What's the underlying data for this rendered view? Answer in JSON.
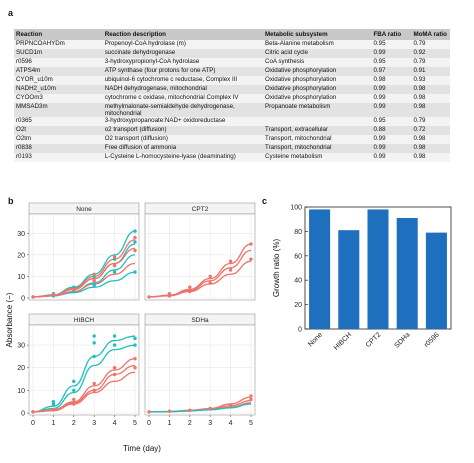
{
  "panels": {
    "a": "a",
    "b": "b",
    "c": "c"
  },
  "table": {
    "headers": [
      "Reaction",
      "Reaction description",
      "Metabolic subsystem",
      "FBA ratio",
      "MoMA ratio"
    ],
    "rows": [
      [
        "PRPNCOAHYDm",
        "Propenoyl-CoA hydrolase (m)",
        "Beta-Alanine metabolism",
        "0.95",
        "0.79"
      ],
      [
        "SUCD1m",
        "succinate dehydrogenase",
        "Citric acid cycle",
        "0.99",
        "0.92"
      ],
      [
        "r0596",
        "3-hydroxypropionyl-CoA hydrolase",
        "CoA synthesis",
        "0.95",
        "0.79"
      ],
      [
        "ATPS4m",
        "ATP synthase (four protons for one ATP)",
        "Oxidative phosphorylation",
        "0.97",
        "0.91"
      ],
      [
        "CYOR_u10m",
        "ubiquinol-6 cytochrome c reductase, Complex III",
        "Oxidative phosphorylation",
        "0.98",
        "0.93"
      ],
      [
        "NADH2_u10m",
        "NADH dehydrogenase, mitochondrial",
        "Oxidative phosphorylation",
        "0.99",
        "0.98"
      ],
      [
        "CYOOm3",
        "cytochrome c oxidase, mitochondrial Complex IV",
        "Oxidative phosphorylation",
        "0.99",
        "0.98"
      ],
      [
        "MMSAD3m",
        "methylmalonate-semialdehyde dehydrogenase, mitochondrial",
        "Propanoate metabolism",
        "0.99",
        "0.98"
      ],
      [
        "r0365",
        "3-hydroxypropanoate:NAD+ oxidoreductase",
        "",
        "0.95",
        "0.79"
      ],
      [
        "O2t",
        "o2 transport (diffusion)",
        "Transport, extracellular",
        "0.88",
        "0.72"
      ],
      [
        "O2tm",
        "O2 transport (diffusion)",
        "Transport, mitochondrial",
        "0.99",
        "0.98"
      ],
      [
        "r0838",
        "Free diffusion of ammonia",
        "Transport, mitochondrial",
        "0.99",
        "0.98"
      ],
      [
        "r0193",
        "L-Cysteine L-homocysteine-lyase (deaminating)",
        "Cysteine metabolism",
        "0.99",
        "0.98"
      ]
    ]
  },
  "chart_data": [
    {
      "type": "scatter",
      "panel": "b",
      "xlabel": "Time (day)",
      "ylabel": "Absorbance (−)",
      "xlim": [
        0,
        5
      ],
      "ylim": [
        0,
        38
      ],
      "xticks": [
        0,
        1,
        2,
        3,
        4,
        5
      ],
      "yticks": [
        0,
        10,
        20,
        30
      ],
      "colors": {
        "a": "#1fbfbf",
        "b": "#f0736a"
      },
      "facets": [
        {
          "title": "None",
          "curves": [
            {
              "series": "a",
              "x": [
                0,
                1,
                2,
                3,
                4,
                5
              ],
              "y": [
                0.5,
                1.5,
                5,
                11,
                20,
                31
              ]
            },
            {
              "series": "a",
              "x": [
                0,
                1,
                2,
                3,
                4,
                5
              ],
              "y": [
                0.5,
                1.2,
                4,
                9,
                16,
                25
              ]
            },
            {
              "series": "a",
              "x": [
                0,
                1,
                2,
                3,
                4,
                5
              ],
              "y": [
                0.5,
                1,
                3,
                7,
                13,
                20
              ]
            },
            {
              "series": "a",
              "x": [
                0,
                1,
                2,
                3,
                4,
                5
              ],
              "y": [
                0.5,
                1,
                2.5,
                5,
                8,
                12
              ]
            },
            {
              "series": "b",
              "x": [
                0,
                1,
                2,
                3,
                4,
                5
              ],
              "y": [
                0.5,
                1.3,
                4.5,
                10,
                18,
                27
              ]
            },
            {
              "series": "b",
              "x": [
                0,
                1,
                2,
                3,
                4,
                5
              ],
              "y": [
                0.5,
                1.2,
                4,
                9,
                16,
                23
              ]
            },
            {
              "series": "b",
              "x": [
                0,
                1,
                2,
                3,
                4,
                5
              ],
              "y": [
                0.5,
                1,
                3,
                6.5,
                11,
                16
              ]
            }
          ],
          "points": [
            {
              "series": "a",
              "x": 0,
              "y": 0.5
            },
            {
              "series": "a",
              "x": 1,
              "y": 1
            },
            {
              "series": "a",
              "x": 1,
              "y": 2
            },
            {
              "series": "a",
              "x": 2,
              "y": 3
            },
            {
              "series": "a",
              "x": 2,
              "y": 5
            },
            {
              "series": "a",
              "x": 3,
              "y": 6
            },
            {
              "series": "a",
              "x": 3,
              "y": 10
            },
            {
              "series": "a",
              "x": 4,
              "y": 12
            },
            {
              "series": "a",
              "x": 4,
              "y": 18
            },
            {
              "series": "a",
              "x": 5,
              "y": 12
            },
            {
              "series": "a",
              "x": 5,
              "y": 26
            },
            {
              "series": "a",
              "x": 5,
              "y": 31
            },
            {
              "series": "b",
              "x": 0,
              "y": 0.5
            },
            {
              "series": "b",
              "x": 1,
              "y": 1.5
            },
            {
              "series": "b",
              "x": 2,
              "y": 4
            },
            {
              "series": "b",
              "x": 3,
              "y": 8
            },
            {
              "series": "b",
              "x": 3,
              "y": 11
            },
            {
              "series": "b",
              "x": 4,
              "y": 15
            },
            {
              "series": "b",
              "x": 4,
              "y": 19
            },
            {
              "series": "b",
              "x": 5,
              "y": 22
            },
            {
              "series": "b",
              "x": 5,
              "y": 28
            }
          ]
        },
        {
          "title": "CPT2",
          "curves": [
            {
              "series": "b",
              "x": [
                0,
                1,
                2,
                3,
                4,
                5
              ],
              "y": [
                0.5,
                1.3,
                4,
                9,
                16,
                25
              ]
            },
            {
              "series": "b",
              "x": [
                0,
                1,
                2,
                3,
                4,
                5
              ],
              "y": [
                0.5,
                1.2,
                3.5,
                8,
                14,
                22
              ]
            },
            {
              "series": "b",
              "x": [
                0,
                1,
                2,
                3,
                4,
                5
              ],
              "y": [
                0.5,
                1,
                3,
                6.5,
                11,
                17
              ]
            }
          ],
          "points": [
            {
              "series": "b",
              "x": 0,
              "y": 0.5
            },
            {
              "series": "b",
              "x": 1,
              "y": 1
            },
            {
              "series": "b",
              "x": 1,
              "y": 2
            },
            {
              "series": "b",
              "x": 2,
              "y": 3
            },
            {
              "series": "b",
              "x": 2,
              "y": 5
            },
            {
              "series": "b",
              "x": 3,
              "y": 7
            },
            {
              "series": "b",
              "x": 3,
              "y": 10
            },
            {
              "series": "b",
              "x": 4,
              "y": 13
            },
            {
              "series": "b",
              "x": 4,
              "y": 17
            },
            {
              "series": "b",
              "x": 5,
              "y": 18
            },
            {
              "series": "b",
              "x": 5,
              "y": 25
            }
          ]
        },
        {
          "title": "HIBCH",
          "curves": [
            {
              "series": "a",
              "x": [
                0,
                1,
                2,
                3,
                4,
                5
              ],
              "y": [
                0.5,
                3,
                12,
                25,
                32,
                34
              ]
            },
            {
              "series": "a",
              "x": [
                0,
                1,
                2,
                3,
                4,
                5
              ],
              "y": [
                0.5,
                2,
                9,
                21,
                28,
                30
              ]
            },
            {
              "series": "b",
              "x": [
                0,
                1,
                2,
                3,
                4,
                5
              ],
              "y": [
                0.5,
                1.5,
                5,
                12,
                19,
                24
              ]
            },
            {
              "series": "b",
              "x": [
                0,
                1,
                2,
                3,
                4,
                5
              ],
              "y": [
                0.5,
                1.3,
                4.5,
                10,
                17,
                21
              ]
            },
            {
              "series": "b",
              "x": [
                0,
                1,
                2,
                3,
                4,
                5
              ],
              "y": [
                0.5,
                1,
                4,
                9,
                14,
                18
              ]
            }
          ],
          "points": [
            {
              "series": "a",
              "x": 0,
              "y": 0.5
            },
            {
              "series": "a",
              "x": 1,
              "y": 4
            },
            {
              "series": "a",
              "x": 1,
              "y": 5
            },
            {
              "series": "a",
              "x": 2,
              "y": 10
            },
            {
              "series": "a",
              "x": 2,
              "y": 14
            },
            {
              "series": "a",
              "x": 3,
              "y": 25
            },
            {
              "series": "a",
              "x": 3,
              "y": 34
            },
            {
              "series": "a",
              "x": 3,
              "y": 31
            },
            {
              "series": "a",
              "x": 4,
              "y": 30
            },
            {
              "series": "a",
              "x": 4,
              "y": 34
            },
            {
              "series": "a",
              "x": 5,
              "y": 33
            },
            {
              "series": "a",
              "x": 5,
              "y": 30
            },
            {
              "series": "b",
              "x": 0,
              "y": 0.5
            },
            {
              "series": "b",
              "x": 1,
              "y": 1.5
            },
            {
              "series": "b",
              "x": 2,
              "y": 4
            },
            {
              "series": "b",
              "x": 2,
              "y": 6
            },
            {
              "series": "b",
              "x": 3,
              "y": 10
            },
            {
              "series": "b",
              "x": 3,
              "y": 13
            },
            {
              "series": "b",
              "x": 4,
              "y": 17
            },
            {
              "series": "b",
              "x": 4,
              "y": 20
            },
            {
              "series": "b",
              "x": 5,
              "y": 24
            },
            {
              "series": "b",
              "x": 5,
              "y": 20
            }
          ]
        },
        {
          "title": "SDHa",
          "curves": [
            {
              "series": "b",
              "x": [
                0,
                1,
                2,
                3,
                4,
                5
              ],
              "y": [
                0.5,
                0.7,
                1.2,
                2,
                4,
                7
              ]
            },
            {
              "series": "b",
              "x": [
                0,
                1,
                2,
                3,
                4,
                5
              ],
              "y": [
                0.5,
                0.6,
                1,
                1.8,
                3.2,
                5.5
              ]
            },
            {
              "series": "b",
              "x": [
                0,
                1,
                2,
                3,
                4,
                5
              ],
              "y": [
                0.5,
                0.6,
                0.9,
                1.5,
                2.6,
                4.5
              ]
            },
            {
              "series": "a",
              "x": [
                0,
                1,
                2,
                3,
                4,
                5
              ],
              "y": [
                0.5,
                0.6,
                0.9,
                1.4,
                2.3,
                4
              ]
            }
          ],
          "points": [
            {
              "series": "b",
              "x": 0,
              "y": 0.5
            },
            {
              "series": "b",
              "x": 1,
              "y": 0.8
            },
            {
              "series": "b",
              "x": 2,
              "y": 1.2
            },
            {
              "series": "b",
              "x": 3,
              "y": 2
            },
            {
              "series": "b",
              "x": 4,
              "y": 3.5
            },
            {
              "series": "b",
              "x": 5,
              "y": 6
            },
            {
              "series": "b",
              "x": 5,
              "y": 7.5
            }
          ]
        }
      ]
    },
    {
      "type": "bar",
      "panel": "c",
      "categories": [
        "None",
        "HIBCH",
        "CPT2",
        "SDHa",
        "r0596"
      ],
      "values": [
        98,
        81,
        98,
        91,
        79
      ],
      "ylabel": "Growth ratio (%)",
      "ylim": [
        0,
        100
      ],
      "yticks": [
        0,
        20,
        40,
        60,
        80,
        100
      ],
      "bar_color": "#1f6fbf"
    }
  ]
}
